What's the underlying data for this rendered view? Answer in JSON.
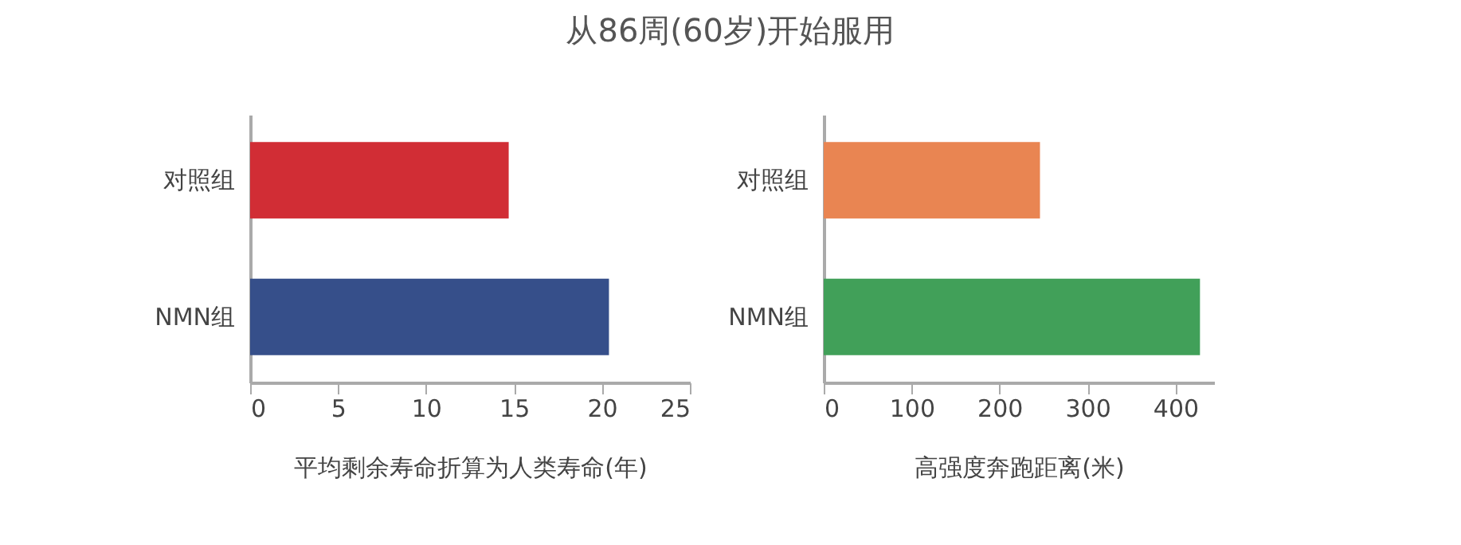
{
  "chart_data": [
    {
      "type": "bar",
      "title": "从86周(60岁)开始服用",
      "orientation": "horizontal",
      "categories": [
        "对照组",
        "NMN组"
      ],
      "values": [
        14.7,
        20.4
      ],
      "colors": [
        "#d12d35",
        "#364f8a"
      ],
      "xlim": [
        0,
        25
      ],
      "xticks": [
        0,
        5,
        10,
        15,
        20,
        25
      ],
      "xlabel": "平均剩余寿命折算为人类寿命(年)",
      "grid": false
    },
    {
      "type": "bar",
      "orientation": "horizontal",
      "categories": [
        "对照组",
        "NMN组"
      ],
      "values": [
        246,
        428
      ],
      "colors": [
        "#e98552",
        "#41a059"
      ],
      "xlim": [
        0,
        444
      ],
      "xticks": [
        0,
        100,
        200,
        300,
        400
      ],
      "xlabel": "高强度奔跑距离(米)",
      "grid": false
    }
  ]
}
